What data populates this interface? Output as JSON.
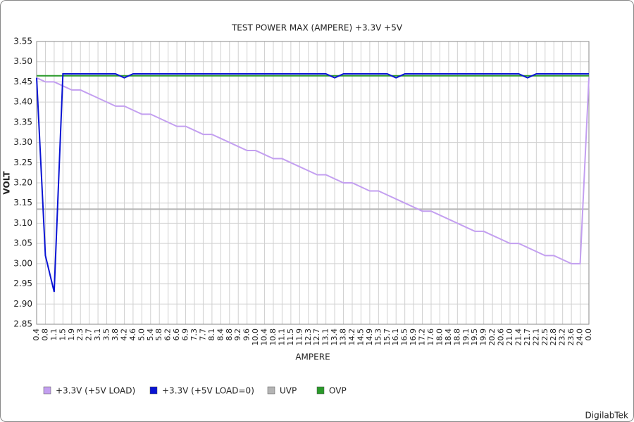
{
  "chart_data": {
    "type": "line",
    "title": "TEST POWER MAX (AMPERE) +3.3V +5V",
    "x_label": "AMPERE",
    "y_label": "VOLT",
    "watermark": "DigilabTek",
    "categories": [
      "0.4",
      "0.8",
      "1.1",
      "1.5",
      "1.9",
      "2.3",
      "2.7",
      "3.1",
      "3.5",
      "3.8",
      "4.2",
      "4.6",
      "5.0",
      "5.4",
      "5.8",
      "6.2",
      "6.6",
      "6.9",
      "7.3",
      "7.7",
      "8.1",
      "8.4",
      "8.8",
      "9.2",
      "9.6",
      "10.0",
      "10.4",
      "10.8",
      "11.1",
      "11.5",
      "11.9",
      "12.3",
      "12.7",
      "13.1",
      "13.4",
      "13.8",
      "14.2",
      "14.5",
      "14.9",
      "15.3",
      "15.7",
      "16.1",
      "16.5",
      "16.9",
      "17.2",
      "17.6",
      "18.0",
      "18.4",
      "18.8",
      "19.1",
      "19.5",
      "19.9",
      "20.2",
      "20.6",
      "21.0",
      "21.4",
      "21.7",
      "22.1",
      "22.5",
      "22.8",
      "23.2",
      "23.6",
      "24.0",
      "0.0"
    ],
    "series": [
      {
        "name": "+3.3V (+5V LOAD)",
        "color": "#c39ff0",
        "values": [
          3.46,
          3.45,
          3.45,
          3.44,
          3.43,
          3.43,
          3.42,
          3.41,
          3.4,
          3.39,
          3.39,
          3.38,
          3.37,
          3.37,
          3.36,
          3.35,
          3.34,
          3.34,
          3.33,
          3.32,
          3.32,
          3.31,
          3.3,
          3.29,
          3.28,
          3.28,
          3.27,
          3.26,
          3.26,
          3.25,
          3.24,
          3.23,
          3.22,
          3.22,
          3.21,
          3.2,
          3.2,
          3.19,
          3.18,
          3.18,
          3.17,
          3.16,
          3.15,
          3.14,
          3.13,
          3.13,
          3.12,
          3.11,
          3.1,
          3.09,
          3.08,
          3.08,
          3.07,
          3.06,
          3.05,
          3.05,
          3.04,
          3.03,
          3.02,
          3.02,
          3.01,
          3.0,
          3.0,
          3.46
        ]
      },
      {
        "name": "+3.3V (+5V LOAD=0)",
        "color": "#0a14d4",
        "values": [
          3.46,
          3.02,
          2.93,
          3.47,
          3.47,
          3.47,
          3.47,
          3.47,
          3.47,
          3.47,
          3.46,
          3.47,
          3.47,
          3.47,
          3.47,
          3.47,
          3.47,
          3.47,
          3.47,
          3.47,
          3.47,
          3.47,
          3.47,
          3.47,
          3.47,
          3.47,
          3.47,
          3.47,
          3.47,
          3.47,
          3.47,
          3.47,
          3.47,
          3.47,
          3.46,
          3.47,
          3.47,
          3.47,
          3.47,
          3.47,
          3.47,
          3.46,
          3.47,
          3.47,
          3.47,
          3.47,
          3.47,
          3.47,
          3.47,
          3.47,
          3.47,
          3.47,
          3.47,
          3.47,
          3.47,
          3.47,
          3.46,
          3.47,
          3.47,
          3.47,
          3.47,
          3.47,
          3.47,
          3.47
        ]
      },
      {
        "name": "UVP",
        "color": "#b4b4b4",
        "values": [
          3.135,
          3.135,
          3.135,
          3.135,
          3.135,
          3.135,
          3.135,
          3.135,
          3.135,
          3.135,
          3.135,
          3.135,
          3.135,
          3.135,
          3.135,
          3.135,
          3.135,
          3.135,
          3.135,
          3.135,
          3.135,
          3.135,
          3.135,
          3.135,
          3.135,
          3.135,
          3.135,
          3.135,
          3.135,
          3.135,
          3.135,
          3.135,
          3.135,
          3.135,
          3.135,
          3.135,
          3.135,
          3.135,
          3.135,
          3.135,
          3.135,
          3.135,
          3.135,
          3.135,
          3.135,
          3.135,
          3.135,
          3.135,
          3.135,
          3.135,
          3.135,
          3.135,
          3.135,
          3.135,
          3.135,
          3.135,
          3.135,
          3.135,
          3.135,
          3.135,
          3.135,
          3.135,
          3.135,
          3.135
        ]
      },
      {
        "name": "OVP",
        "color": "#2a9a2a",
        "values": [
          3.465,
          3.465,
          3.465,
          3.465,
          3.465,
          3.465,
          3.465,
          3.465,
          3.465,
          3.465,
          3.465,
          3.465,
          3.465,
          3.465,
          3.465,
          3.465,
          3.465,
          3.465,
          3.465,
          3.465,
          3.465,
          3.465,
          3.465,
          3.465,
          3.465,
          3.465,
          3.465,
          3.465,
          3.465,
          3.465,
          3.465,
          3.465,
          3.465,
          3.465,
          3.465,
          3.465,
          3.465,
          3.465,
          3.465,
          3.465,
          3.465,
          3.465,
          3.465,
          3.465,
          3.465,
          3.465,
          3.465,
          3.465,
          3.465,
          3.465,
          3.465,
          3.465,
          3.465,
          3.465,
          3.465,
          3.465,
          3.465,
          3.465,
          3.465,
          3.465,
          3.465,
          3.465,
          3.465,
          3.465
        ]
      }
    ],
    "ylim": [
      2.85,
      3.55
    ],
    "yticks": [
      2.85,
      {
        "value": 2.9,
        "label": "2.90"
      },
      2.95,
      {
        "value": 3.0,
        "label": "3.00"
      },
      3.05,
      {
        "value": 3.1,
        "label": "3.10"
      },
      3.15,
      {
        "value": 3.2,
        "label": "3.20"
      },
      3.25,
      {
        "value": 3.3,
        "label": "3.30"
      },
      3.35,
      {
        "value": 3.4,
        "label": "3.40"
      },
      3.45,
      {
        "value": 3.5,
        "label": "3.50"
      },
      3.55
    ],
    "grid": true,
    "legend": "bottom"
  }
}
